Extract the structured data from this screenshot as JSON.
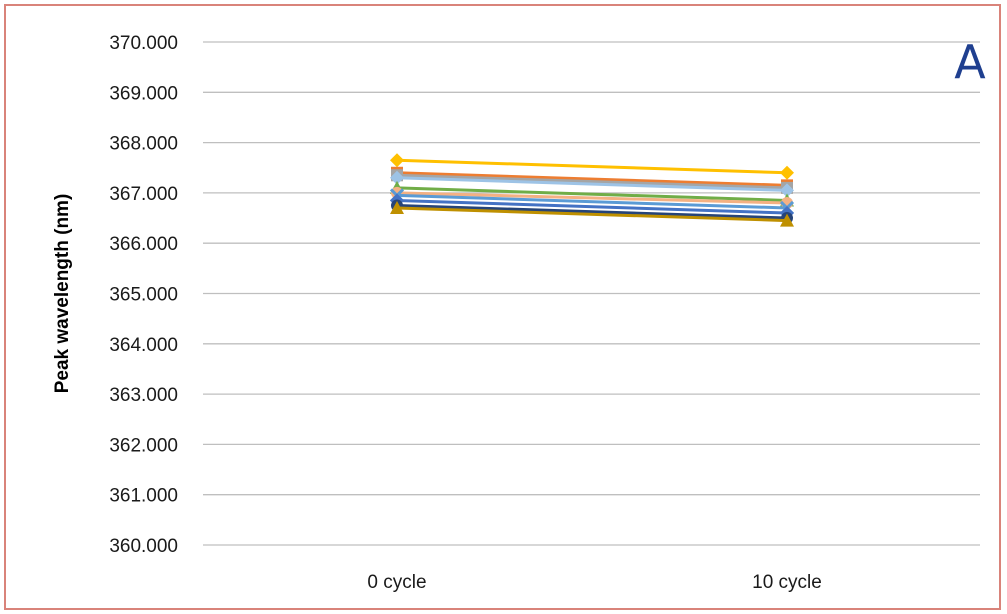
{
  "chart_data": {
    "type": "line",
    "panel_label": "A",
    "ylabel": "Peak wavelength (nm)",
    "xlabel": "",
    "categories": [
      "0 cycle",
      "10 cycle"
    ],
    "ylim": [
      360,
      370
    ],
    "yticks": [
      "360.000",
      "361.000",
      "362.000",
      "363.000",
      "364.000",
      "365.000",
      "366.000",
      "367.000",
      "368.000",
      "369.000",
      "370.000"
    ],
    "grid": true,
    "series": [
      {
        "values": [
          367.65,
          367.4
        ],
        "color": "#ffc000",
        "marker": "diamond"
      },
      {
        "values": [
          367.4,
          367.15
        ],
        "color": "#ed7d31",
        "marker": "square"
      },
      {
        "values": [
          367.35,
          367.1
        ],
        "color": "#a5a5a5",
        "marker": "square"
      },
      {
        "values": [
          367.3,
          367.05
        ],
        "color": "#9dc3e6",
        "marker": "diamond"
      },
      {
        "values": [
          367.1,
          366.85
        ],
        "color": "#70ad47",
        "marker": "triangle"
      },
      {
        "values": [
          367.0,
          366.8
        ],
        "color": "#f4b183",
        "marker": "circle"
      },
      {
        "values": [
          366.95,
          366.7
        ],
        "color": "#5b9bd5",
        "marker": "cross"
      },
      {
        "values": [
          366.85,
          366.6
        ],
        "color": "#4472c4",
        "marker": "diamond"
      },
      {
        "values": [
          366.75,
          366.5
        ],
        "color": "#264478",
        "marker": "circle"
      },
      {
        "values": [
          366.7,
          366.45
        ],
        "color": "#bf9000",
        "marker": "triangle"
      }
    ]
  }
}
